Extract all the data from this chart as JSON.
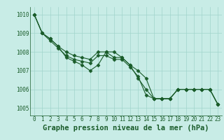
{
  "title": "Graphe pression niveau de la mer (hPa)",
  "background_color": "#c8ece6",
  "grid_color": "#a0d4cc",
  "line_color": "#1a5c2a",
  "label_color": "#1a5c2a",
  "x_ticks": [
    0,
    1,
    2,
    3,
    4,
    5,
    6,
    7,
    8,
    9,
    10,
    11,
    12,
    13,
    14,
    15,
    16,
    17,
    18,
    19,
    20,
    21,
    22,
    23
  ],
  "ylim": [
    1004.6,
    1010.4
  ],
  "yticks": [
    1005,
    1006,
    1007,
    1008,
    1009,
    1010
  ],
  "series": [
    [
      1010.0,
      1009.0,
      1008.7,
      1008.3,
      1007.7,
      1007.5,
      1007.3,
      1007.0,
      1007.3,
      1008.0,
      1008.0,
      1007.7,
      1007.3,
      1006.6,
      1006.0,
      1005.5,
      1005.5,
      1005.5,
      1006.0,
      1006.0,
      1006.0,
      1006.0,
      1006.0,
      1005.2
    ],
    [
      1010.0,
      1009.0,
      1008.7,
      1008.3,
      1008.0,
      1007.8,
      1007.7,
      1007.6,
      1008.0,
      1008.0,
      1007.7,
      1007.7,
      1007.3,
      1007.0,
      1006.6,
      1005.5,
      1005.5,
      1005.5,
      1006.0,
      1006.0,
      1006.0,
      1006.0,
      1006.0,
      1005.2
    ],
    [
      1010.0,
      1009.0,
      1008.6,
      1008.2,
      1007.8,
      1007.6,
      1007.5,
      1007.4,
      1007.8,
      1007.8,
      1007.6,
      1007.6,
      1007.2,
      1006.7,
      1005.7,
      1005.5,
      1005.5,
      1005.5,
      1006.0,
      1006.0,
      1006.0,
      1006.0,
      1006.0,
      1005.2
    ]
  ],
  "marker": "D",
  "markersize": 2.5,
  "linewidth": 0.8,
  "tick_fontsize": 5.5,
  "title_fontsize": 7.5,
  "ylabel_fontsize": 5.5
}
